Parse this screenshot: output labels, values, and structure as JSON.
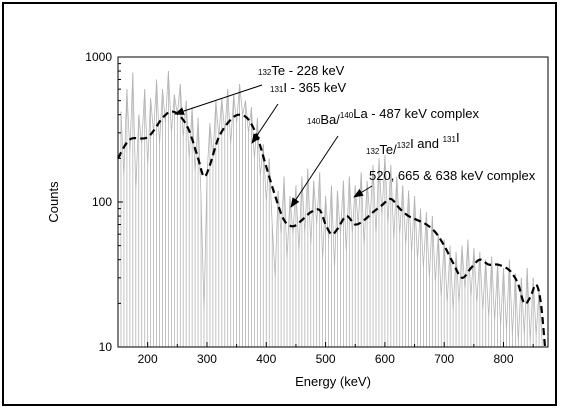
{
  "chart_data": {
    "type": "line",
    "xlabel": "Energy (keV)",
    "ylabel": "Counts",
    "xlim": [
      150,
      875
    ],
    "ylim": [
      10,
      1000
    ],
    "y_scale": "log",
    "x_ticks": [
      200,
      300,
      400,
      500,
      600,
      700,
      800
    ],
    "y_ticks": [
      10,
      100,
      1000
    ],
    "grid": false,
    "legend": "none",
    "colors": {
      "raw": "#b4b4b4",
      "smoothed": "#000000",
      "axis": "#000000"
    },
    "series": [
      {
        "style": "dashed",
        "x": [
          150,
          170,
          200,
          225,
          240,
          255,
          270,
          285,
          295,
          305,
          320,
          340,
          355,
          370,
          385,
          400,
          415,
          430,
          445,
          460,
          475,
          490,
          500,
          510,
          520,
          535,
          550,
          565,
          580,
          595,
          610,
          625,
          640,
          655,
          670,
          685,
          700,
          715,
          730,
          745,
          760,
          775,
          790,
          805,
          815,
          825,
          835,
          845,
          855,
          863,
          870
        ],
        "y": [
          200,
          270,
          280,
          380,
          420,
          390,
          310,
          200,
          150,
          180,
          280,
          370,
          400,
          370,
          280,
          175,
          110,
          75,
          68,
          75,
          85,
          88,
          70,
          60,
          65,
          80,
          70,
          75,
          85,
          95,
          105,
          90,
          80,
          75,
          70,
          62,
          50,
          38,
          30,
          35,
          40,
          37,
          37,
          35,
          32,
          27,
          20,
          22,
          27,
          20,
          10
        ]
      },
      {
        "style": "raw-spectrum",
        "x": [
          155,
          160,
          165,
          170,
          175,
          180,
          185,
          190,
          195,
          200,
          205,
          210,
          215,
          220,
          225,
          230,
          235,
          240,
          245,
          250,
          255,
          260,
          265,
          270,
          275,
          280,
          285,
          290,
          295,
          300,
          305,
          310,
          315,
          320,
          325,
          330,
          335,
          340,
          345,
          350,
          355,
          360,
          365,
          370,
          375,
          380,
          385,
          390,
          395,
          400,
          405,
          410,
          415,
          420,
          425,
          430,
          435,
          440,
          445,
          450,
          455,
          460,
          465,
          470,
          475,
          480,
          485,
          490,
          495,
          500,
          505,
          510,
          515,
          520,
          525,
          530,
          535,
          540,
          545,
          550,
          555,
          560,
          565,
          570,
          575,
          580,
          585,
          590,
          595,
          600,
          605,
          610,
          615,
          620,
          625,
          630,
          635,
          640,
          645,
          650,
          655,
          660,
          665,
          670,
          675,
          680,
          685,
          690,
          695,
          700,
          705,
          710,
          715,
          720,
          725,
          730,
          735,
          740,
          745,
          750,
          755,
          760,
          765,
          770,
          775,
          780,
          785,
          790,
          795,
          800,
          805,
          810,
          815,
          820,
          825,
          830,
          835,
          840,
          845,
          850,
          855,
          860,
          865
        ],
        "y": [
          420,
          150,
          600,
          220,
          780,
          120,
          400,
          250,
          600,
          180,
          520,
          300,
          700,
          250,
          600,
          350,
          800,
          300,
          550,
          400,
          650,
          280,
          500,
          200,
          450,
          160,
          380,
          110,
          18,
          150,
          350,
          200,
          500,
          280,
          520,
          300,
          600,
          250,
          550,
          350,
          650,
          400,
          500,
          300,
          450,
          200,
          380,
          150,
          250,
          100,
          200,
          70,
          30,
          120,
          60,
          150,
          40,
          110,
          60,
          130,
          45,
          150,
          60,
          170,
          50,
          140,
          70,
          160,
          40,
          110,
          55,
          130,
          35,
          120,
          60,
          140,
          45,
          150,
          60,
          130,
          70,
          160,
          50,
          140,
          75,
          180,
          60,
          200,
          80,
          210,
          70,
          180,
          55,
          150,
          60,
          130,
          50,
          120,
          45,
          110,
          40,
          90,
          35,
          85,
          30,
          80,
          28,
          60,
          22,
          55,
          20,
          50,
          18,
          45,
          20,
          50,
          25,
          55,
          22,
          48,
          20,
          45,
          18,
          40,
          16,
          42,
          15,
          38,
          14,
          35,
          13,
          40,
          12,
          32,
          11,
          30,
          12,
          35,
          11,
          30,
          12,
          25,
          11
        ]
      }
    ],
    "annotations": [
      {
        "parts": [
          {
            "text": "132",
            "sup": true
          },
          {
            "text": "Te - 228 keV",
            "sup": false
          }
        ],
        "x": 240,
        "y": 420
      },
      {
        "parts": [
          {
            "text": "131",
            "sup": true
          },
          {
            "text": "I - 365 keV",
            "sup": false
          }
        ],
        "x": 395,
        "y": 260
      },
      {
        "parts": [
          {
            "text": "140",
            "sup": true
          },
          {
            "text": "Ba/",
            "sup": false
          },
          {
            "text": "140",
            "sup": true
          },
          {
            "text": "La - 487 keV complex",
            "sup": false
          }
        ],
        "x": 465,
        "y": 85
      },
      {
        "parts": [
          {
            "text": "132",
            "sup": true
          },
          {
            "text": "Te/",
            "sup": false
          },
          {
            "text": "132",
            "sup": true
          },
          {
            "text": "I and ",
            "sup": false
          },
          {
            "text": "131",
            "sup": true
          },
          {
            "text": "I",
            "sup": false
          }
        ],
        "x": 605,
        "y": 105
      },
      {
        "parts": [
          {
            "text": "520, 665 & 638 keV complex",
            "sup": false
          }
        ],
        "x": null,
        "y": null
      }
    ]
  }
}
